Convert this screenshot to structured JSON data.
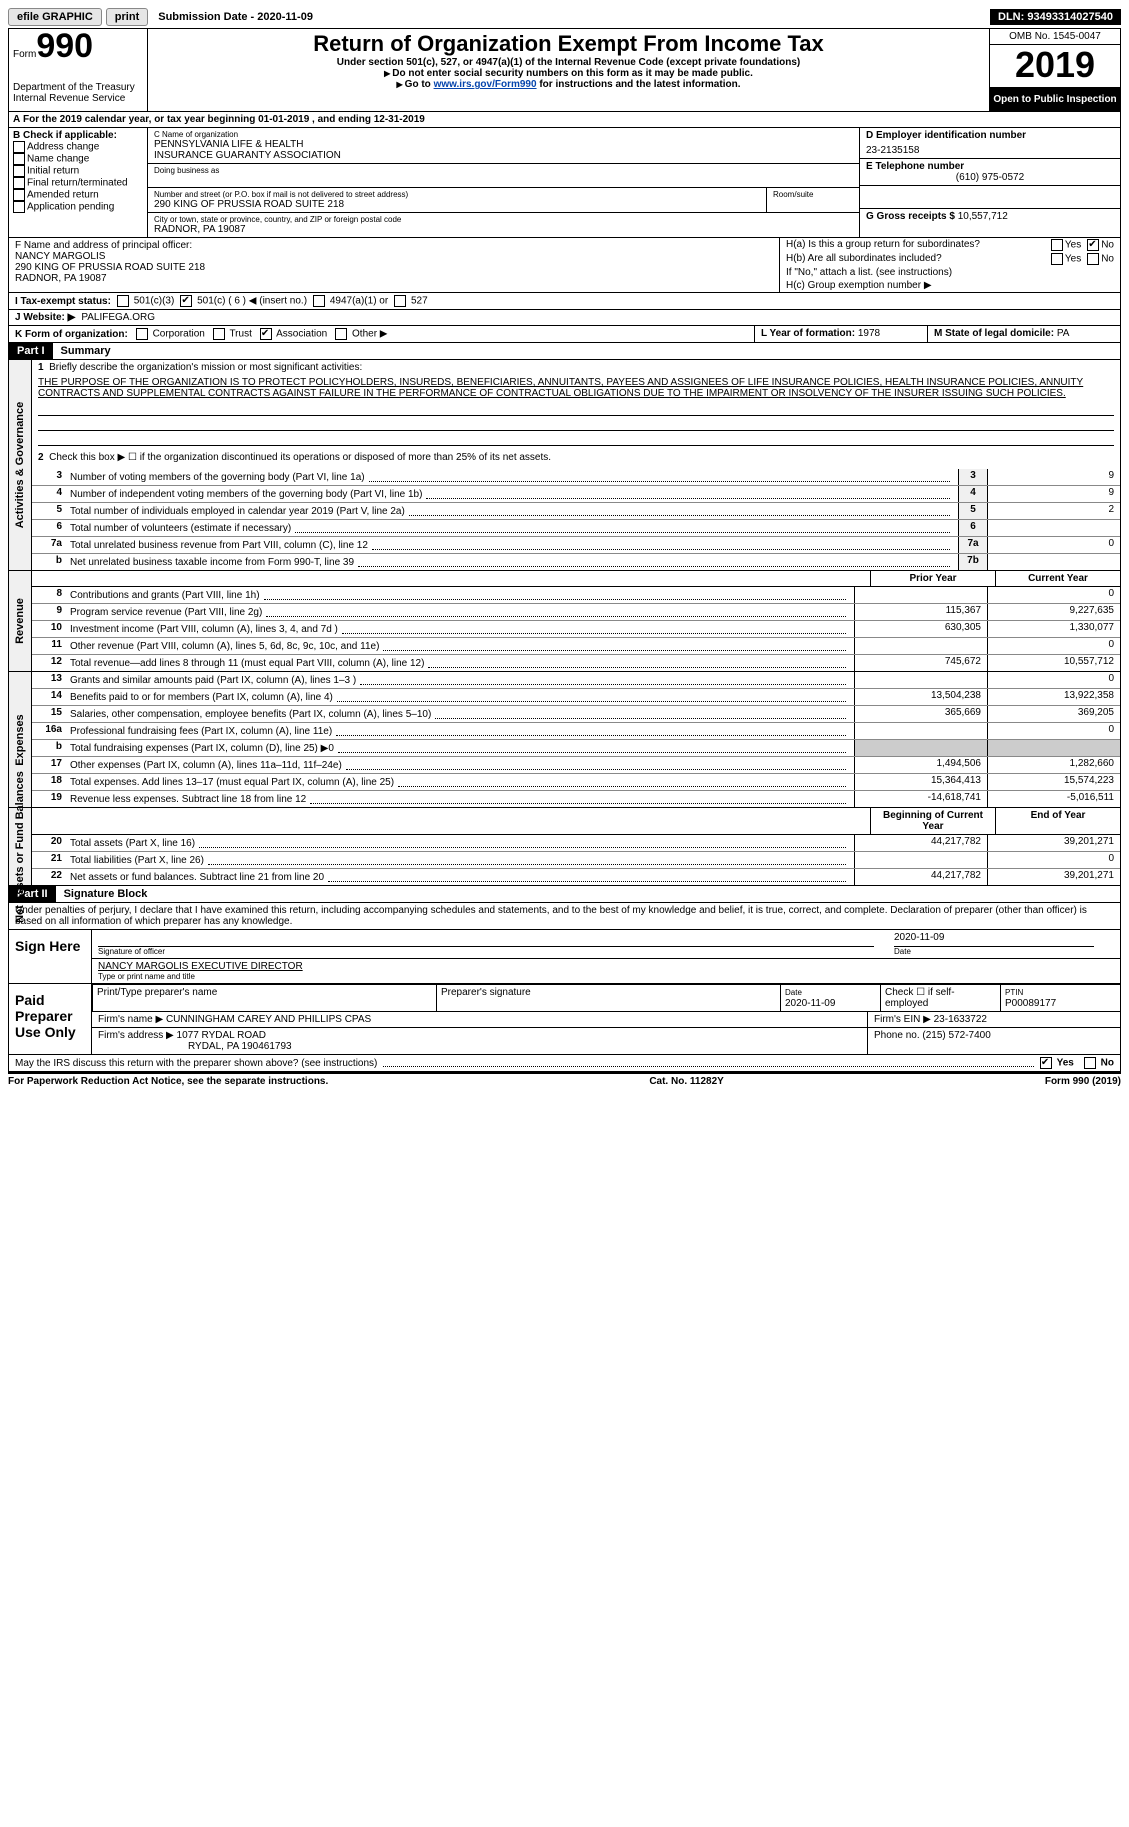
{
  "topbar": {
    "efile": "efile GRAPHIC",
    "print": "print",
    "submission_label": "Submission Date - ",
    "submission_date": "2020-11-09",
    "dln_label": "DLN: ",
    "dln": "93493314027540"
  },
  "header": {
    "form_prefix": "Form",
    "form_number": "990",
    "dept1": "Department of the Treasury",
    "dept2": "Internal Revenue Service",
    "title": "Return of Organization Exempt From Income Tax",
    "subtitle": "Under section 501(c), 527, or 4947(a)(1) of the Internal Revenue Code (except private foundations)",
    "note1": "Do not enter social security numbers on this form as it may be made public.",
    "note2_prefix": "Go to ",
    "note2_link": "www.irs.gov/Form990",
    "note2_suffix": " for instructions and the latest information.",
    "omb": "OMB No. 1545-0047",
    "year": "2019",
    "open": "Open to Public Inspection"
  },
  "row_a": {
    "prefix": "A",
    "text": "For the 2019 calendar year, or tax year beginning 01-01-2019     , and ending 12-31-2019"
  },
  "box_b": {
    "label": "B Check if applicable:",
    "items": [
      "Address change",
      "Name change",
      "Initial return",
      "Final return/terminated",
      "Amended return",
      "Application pending"
    ]
  },
  "box_c": {
    "name_label": "C Name of organization",
    "name1": "PENNSYLVANIA LIFE & HEALTH",
    "name2": "INSURANCE GUARANTY ASSOCIATION",
    "dba_label": "Doing business as",
    "addr_label": "Number and street (or P.O. box if mail is not delivered to street address)",
    "room_label": "Room/suite",
    "addr": "290 KING OF PRUSSIA ROAD SUITE 218",
    "city_label": "City or town, state or province, country, and ZIP or foreign postal code",
    "city": "RADNOR, PA  19087"
  },
  "box_d": {
    "label": "D Employer identification number",
    "value": "23-2135158"
  },
  "box_e": {
    "label": "E Telephone number",
    "value": "(610) 975-0572"
  },
  "box_g": {
    "label": "G Gross receipts $",
    "value": "10,557,712"
  },
  "box_f": {
    "label": "F  Name and address of principal officer:",
    "name": "NANCY MARGOLIS",
    "addr": "290 KING OF PRUSSIA ROAD SUITE 218",
    "city": "RADNOR, PA  19087"
  },
  "box_h": {
    "a_label": "H(a)  Is this a group return for subordinates?",
    "b_label": "H(b)  Are all subordinates included?",
    "b_note": "If \"No,\" attach a list. (see instructions)",
    "c_label": "H(c)  Group exemption number",
    "yes": "Yes",
    "no": "No"
  },
  "row_i": {
    "label": "I    Tax-exempt status:",
    "opts": [
      "501(c)(3)",
      "501(c) ( 6 ) ◀ (insert no.)",
      "4947(a)(1) or",
      "527"
    ]
  },
  "row_j": {
    "label": "J   Website: ▶",
    "value": "PALIFEGA.ORG"
  },
  "row_k": {
    "label": "K Form of organization:",
    "opts": [
      "Corporation",
      "Trust",
      "Association",
      "Other ▶"
    ]
  },
  "row_l": {
    "l_label": "L Year of formation:",
    "l_value": "1978",
    "m_label": "M State of legal domicile:",
    "m_value": "PA"
  },
  "part1": {
    "header": "Part I",
    "title": "Summary",
    "line1_label": "Briefly describe the organization's mission or most significant activities:",
    "mission": "THE PURPOSE OF THE ORGANIZATION IS TO PROTECT POLICYHOLDERS, INSUREDS, BENEFICIARIES, ANNUITANTS, PAYEES AND ASSIGNEES OF LIFE INSURANCE POLICIES, HEALTH INSURANCE POLICIES, ANNUITY CONTRACTS AND SUPPLEMENTAL CONTRACTS AGAINST FAILURE IN THE PERFORMANCE OF CONTRACTUAL OBLIGATIONS DUE TO THE IMPAIRMENT OR INSOLVENCY OF THE INSURER ISSUING SUCH POLICIES.",
    "line2": "Check this box ▶ ☐ if the organization discontinued its operations or disposed of more than 25% of its net assets."
  },
  "side_labels": {
    "ag": "Activities & Governance",
    "rev": "Revenue",
    "exp": "Expenses",
    "net": "Net Assets or Fund Balances"
  },
  "gov_lines": [
    {
      "num": "3",
      "desc": "Number of voting members of the governing body (Part VI, line 1a)",
      "box": "3",
      "val": "9"
    },
    {
      "num": "4",
      "desc": "Number of independent voting members of the governing body (Part VI, line 1b)",
      "box": "4",
      "val": "9"
    },
    {
      "num": "5",
      "desc": "Total number of individuals employed in calendar year 2019 (Part V, line 2a)",
      "box": "5",
      "val": "2"
    },
    {
      "num": "6",
      "desc": "Total number of volunteers (estimate if necessary)",
      "box": "6",
      "val": ""
    },
    {
      "num": "7a",
      "desc": "Total unrelated business revenue from Part VIII, column (C), line 12",
      "box": "7a",
      "val": "0"
    },
    {
      "num": "b",
      "desc": "Net unrelated business taxable income from Form 990-T, line 39",
      "box": "7b",
      "val": ""
    }
  ],
  "col_headers": {
    "prior": "Prior Year",
    "current": "Current Year",
    "begin": "Beginning of Current Year",
    "end": "End of Year"
  },
  "rev_lines": [
    {
      "num": "8",
      "desc": "Contributions and grants (Part VIII, line 1h)",
      "prior": "",
      "current": "0"
    },
    {
      "num": "9",
      "desc": "Program service revenue (Part VIII, line 2g)",
      "prior": "115,367",
      "current": "9,227,635"
    },
    {
      "num": "10",
      "desc": "Investment income (Part VIII, column (A), lines 3, 4, and 7d )",
      "prior": "630,305",
      "current": "1,330,077"
    },
    {
      "num": "11",
      "desc": "Other revenue (Part VIII, column (A), lines 5, 6d, 8c, 9c, 10c, and 11e)",
      "prior": "",
      "current": "0"
    },
    {
      "num": "12",
      "desc": "Total revenue—add lines 8 through 11 (must equal Part VIII, column (A), line 12)",
      "prior": "745,672",
      "current": "10,557,712"
    }
  ],
  "exp_lines": [
    {
      "num": "13",
      "desc": "Grants and similar amounts paid (Part IX, column (A), lines 1–3 )",
      "prior": "",
      "current": "0"
    },
    {
      "num": "14",
      "desc": "Benefits paid to or for members (Part IX, column (A), line 4)",
      "prior": "13,504,238",
      "current": "13,922,358"
    },
    {
      "num": "15",
      "desc": "Salaries, other compensation, employee benefits (Part IX, column (A), lines 5–10)",
      "prior": "365,669",
      "current": "369,205"
    },
    {
      "num": "16a",
      "desc": "Professional fundraising fees (Part IX, column (A), line 11e)",
      "prior": "",
      "current": "0"
    },
    {
      "num": "b",
      "desc": "Total fundraising expenses (Part IX, column (D), line 25) ▶0",
      "prior": "gray",
      "current": "gray"
    },
    {
      "num": "17",
      "desc": "Other expenses (Part IX, column (A), lines 11a–11d, 11f–24e)",
      "prior": "1,494,506",
      "current": "1,282,660"
    },
    {
      "num": "18",
      "desc": "Total expenses. Add lines 13–17 (must equal Part IX, column (A), line 25)",
      "prior": "15,364,413",
      "current": "15,574,223"
    },
    {
      "num": "19",
      "desc": "Revenue less expenses. Subtract line 18 from line 12",
      "prior": "-14,618,741",
      "current": "-5,016,511"
    }
  ],
  "net_lines": [
    {
      "num": "20",
      "desc": "Total assets (Part X, line 16)",
      "prior": "44,217,782",
      "current": "39,201,271"
    },
    {
      "num": "21",
      "desc": "Total liabilities (Part X, line 26)",
      "prior": "",
      "current": "0"
    },
    {
      "num": "22",
      "desc": "Net assets or fund balances. Subtract line 21 from line 20",
      "prior": "44,217,782",
      "current": "39,201,271"
    }
  ],
  "part2": {
    "header": "Part II",
    "title": "Signature Block",
    "declare": "Under penalties of perjury, I declare that I have examined this return, including accompanying schedules and statements, and to the best of my knowledge and belief, it is true, correct, and complete. Declaration of preparer (other than officer) is based on all information of which preparer has any knowledge."
  },
  "sign": {
    "label": "Sign Here",
    "sig_officer": "Signature of officer",
    "date": "2020-11-09",
    "date_label": "Date",
    "name": "NANCY MARGOLIS EXECUTIVE DIRECTOR",
    "name_label": "Type or print name and title"
  },
  "preparer": {
    "label": "Paid Preparer Use Only",
    "h1": "Print/Type preparer's name",
    "h2": "Preparer's signature",
    "h3_label": "Date",
    "h3": "2020-11-09",
    "h4": "Check ☐ if self-employed",
    "h5_label": "PTIN",
    "h5": "P00089177",
    "firm_name_label": "Firm's name    ▶",
    "firm_name": "CUNNINGHAM CAREY AND PHILLIPS CPAS",
    "firm_ein_label": "Firm's EIN ▶",
    "firm_ein": "23-1633722",
    "firm_addr_label": "Firm's address ▶",
    "firm_addr1": "1077 RYDAL ROAD",
    "firm_addr2": "RYDAL, PA  190461793",
    "firm_phone_label": "Phone no.",
    "firm_phone": "(215) 572-7400"
  },
  "discuss": {
    "text": "May the IRS discuss this return with the preparer shown above? (see instructions)",
    "yes": "Yes",
    "no": "No"
  },
  "footer": {
    "left": "For Paperwork Reduction Act Notice, see the separate instructions.",
    "mid": "Cat. No. 11282Y",
    "right": "Form 990 (2019)"
  }
}
